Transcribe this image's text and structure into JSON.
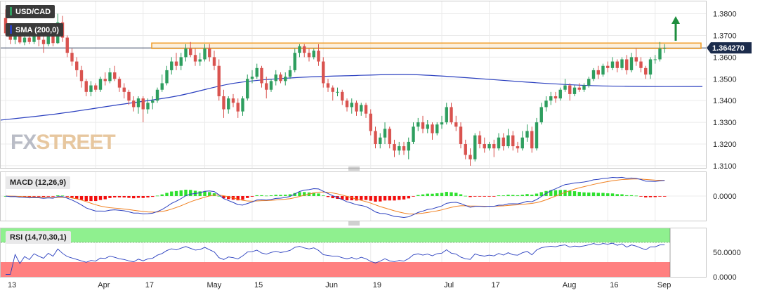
{
  "labels": {
    "symbol": "USD/CAD",
    "sma": "SMA (200,0)",
    "macd": "MACD (12,26,9)",
    "rsi": "RSI (14,70,30,1)",
    "watermark_a": "FX",
    "watermark_b": "STREET"
  },
  "colors": {
    "up": "#2e9e5f",
    "down": "#d9534f",
    "sma": "#2a3fbf",
    "resistance_zone": "#f0a030",
    "macd_line": "#2a3fbf",
    "signal_line": "#f08020",
    "hist_up": "#2ee02e",
    "hist_down": "#f20d0d",
    "rsi_line": "#2a3fbf",
    "rsi_over": "#8ff08f",
    "rsi_under": "#ff8080",
    "price_tag": "#1c2c4c",
    "arrow": "#1e8e3e"
  },
  "chart_data": [
    {
      "type": "candlestick",
      "title": "USD/CAD",
      "x_ticks": [
        "13",
        "Apr",
        "17",
        "May",
        "15",
        "Jun",
        "19",
        "Jul",
        "17",
        "Aug",
        "16",
        "Sep"
      ],
      "x_tick_index": [
        0,
        19,
        29,
        42,
        52,
        67,
        77,
        92,
        102,
        117,
        127,
        137
      ],
      "y_ticks": [
        "1.3800",
        "1.3700",
        "1.3600",
        "1.3500",
        "1.3400",
        "1.3300",
        "1.3200",
        "1.3100"
      ],
      "ylim": [
        1.309,
        1.386
      ],
      "last_price": "1.364270",
      "resistance_zone": [
        1.364,
        1.3665
      ],
      "sma_200": [
        1.331,
        1.334,
        1.338,
        1.342,
        1.348,
        1.3505,
        1.3515,
        1.352,
        1.3505,
        1.3485,
        1.347,
        1.3465,
        1.3465
      ],
      "ohlc": [
        [
          1.378,
          1.382,
          1.37,
          1.371
        ],
        [
          1.371,
          1.3745,
          1.366,
          1.368
        ],
        [
          1.368,
          1.372,
          1.366,
          1.3705
        ],
        [
          1.3705,
          1.372,
          1.366,
          1.3668
        ],
        [
          1.3668,
          1.37,
          1.3655,
          1.369
        ],
        [
          1.369,
          1.371,
          1.366,
          1.367
        ],
        [
          1.367,
          1.372,
          1.366,
          1.37
        ],
        [
          1.37,
          1.373,
          1.365,
          1.368
        ],
        [
          1.368,
          1.37,
          1.362,
          1.366
        ],
        [
          1.366,
          1.372,
          1.365,
          1.37
        ],
        [
          1.37,
          1.3715,
          1.365,
          1.3665
        ],
        [
          1.3665,
          1.38,
          1.366,
          1.376
        ],
        [
          1.376,
          1.379,
          1.367,
          1.369
        ],
        [
          1.369,
          1.37,
          1.36,
          1.362
        ],
        [
          1.362,
          1.364,
          1.356,
          1.358
        ],
        [
          1.358,
          1.36,
          1.351,
          1.354
        ],
        [
          1.354,
          1.356,
          1.346,
          1.349
        ],
        [
          1.349,
          1.35,
          1.342,
          1.344
        ],
        [
          1.344,
          1.349,
          1.342,
          1.347
        ],
        [
          1.347,
          1.348,
          1.344,
          1.345
        ],
        [
          1.345,
          1.351,
          1.344,
          1.35
        ],
        [
          1.35,
          1.353,
          1.347,
          1.349
        ],
        [
          1.349,
          1.355,
          1.348,
          1.353
        ],
        [
          1.353,
          1.356,
          1.349,
          1.35
        ],
        [
          1.35,
          1.351,
          1.344,
          1.346
        ],
        [
          1.346,
          1.348,
          1.341,
          1.344
        ],
        [
          1.344,
          1.345,
          1.338,
          1.34
        ],
        [
          1.34,
          1.342,
          1.335,
          1.337
        ],
        [
          1.337,
          1.342,
          1.334,
          1.341
        ],
        [
          1.341,
          1.342,
          1.33,
          1.336
        ],
        [
          1.336,
          1.341,
          1.334,
          1.339
        ],
        [
          1.339,
          1.342,
          1.336,
          1.34
        ],
        [
          1.34,
          1.346,
          1.339,
          1.345
        ],
        [
          1.345,
          1.352,
          1.344,
          1.348
        ],
        [
          1.348,
          1.356,
          1.347,
          1.354
        ],
        [
          1.354,
          1.36,
          1.352,
          1.358
        ],
        [
          1.358,
          1.362,
          1.354,
          1.356
        ],
        [
          1.356,
          1.362,
          1.354,
          1.36
        ],
        [
          1.36,
          1.366,
          1.358,
          1.364
        ],
        [
          1.364,
          1.367,
          1.36,
          1.361
        ],
        [
          1.361,
          1.364,
          1.356,
          1.358
        ],
        [
          1.358,
          1.362,
          1.356,
          1.359
        ],
        [
          1.359,
          1.366,
          1.358,
          1.364
        ],
        [
          1.364,
          1.366,
          1.358,
          1.36
        ],
        [
          1.36,
          1.363,
          1.354,
          1.356
        ],
        [
          1.356,
          1.359,
          1.34,
          1.342
        ],
        [
          1.342,
          1.345,
          1.332,
          1.336
        ],
        [
          1.336,
          1.342,
          1.334,
          1.341
        ],
        [
          1.341,
          1.343,
          1.337,
          1.339
        ],
        [
          1.339,
          1.341,
          1.332,
          1.335
        ],
        [
          1.335,
          1.342,
          1.333,
          1.341
        ],
        [
          1.341,
          1.352,
          1.34,
          1.35
        ],
        [
          1.35,
          1.354,
          1.348,
          1.351
        ],
        [
          1.351,
          1.357,
          1.35,
          1.355
        ],
        [
          1.355,
          1.356,
          1.346,
          1.348
        ],
        [
          1.348,
          1.351,
          1.341,
          1.345
        ],
        [
          1.345,
          1.35,
          1.344,
          1.349
        ],
        [
          1.349,
          1.354,
          1.347,
          1.352
        ],
        [
          1.352,
          1.353,
          1.348,
          1.349
        ],
        [
          1.349,
          1.353,
          1.347,
          1.351
        ],
        [
          1.351,
          1.356,
          1.35,
          1.354
        ],
        [
          1.354,
          1.364,
          1.353,
          1.362
        ],
        [
          1.362,
          1.366,
          1.36,
          1.365
        ],
        [
          1.365,
          1.366,
          1.36,
          1.362
        ],
        [
          1.362,
          1.364,
          1.358,
          1.36
        ],
        [
          1.36,
          1.364,
          1.359,
          1.363
        ],
        [
          1.363,
          1.366,
          1.356,
          1.358
        ],
        [
          1.358,
          1.36,
          1.346,
          1.348
        ],
        [
          1.348,
          1.35,
          1.344,
          1.346
        ],
        [
          1.346,
          1.347,
          1.34,
          1.344
        ],
        [
          1.344,
          1.346,
          1.342,
          1.344
        ],
        [
          1.344,
          1.345,
          1.338,
          1.34
        ],
        [
          1.34,
          1.341,
          1.335,
          1.337
        ],
        [
          1.337,
          1.341,
          1.334,
          1.339
        ],
        [
          1.339,
          1.34,
          1.333,
          1.335
        ],
        [
          1.335,
          1.339,
          1.333,
          1.338
        ],
        [
          1.338,
          1.339,
          1.332,
          1.334
        ],
        [
          1.334,
          1.336,
          1.324,
          1.326
        ],
        [
          1.326,
          1.328,
          1.318,
          1.32
        ],
        [
          1.32,
          1.325,
          1.318,
          1.323
        ],
        [
          1.323,
          1.33,
          1.32,
          1.327
        ],
        [
          1.327,
          1.328,
          1.318,
          1.32
        ],
        [
          1.32,
          1.322,
          1.314,
          1.317
        ],
        [
          1.317,
          1.321,
          1.315,
          1.319
        ],
        [
          1.319,
          1.321,
          1.315,
          1.317
        ],
        [
          1.317,
          1.323,
          1.313,
          1.321
        ],
        [
          1.321,
          1.33,
          1.32,
          1.328
        ],
        [
          1.328,
          1.332,
          1.326,
          1.33
        ],
        [
          1.33,
          1.333,
          1.325,
          1.327
        ],
        [
          1.327,
          1.331,
          1.325,
          1.329
        ],
        [
          1.329,
          1.33,
          1.322,
          1.325
        ],
        [
          1.325,
          1.33,
          1.324,
          1.329
        ],
        [
          1.329,
          1.333,
          1.327,
          1.33
        ],
        [
          1.33,
          1.339,
          1.329,
          1.337
        ],
        [
          1.337,
          1.339,
          1.329,
          1.33
        ],
        [
          1.33,
          1.333,
          1.326,
          1.328
        ],
        [
          1.328,
          1.33,
          1.318,
          1.32
        ],
        [
          1.32,
          1.322,
          1.313,
          1.315
        ],
        [
          1.315,
          1.318,
          1.31,
          1.313
        ],
        [
          1.313,
          1.325,
          1.312,
          1.324
        ],
        [
          1.324,
          1.326,
          1.318,
          1.32
        ],
        [
          1.32,
          1.323,
          1.316,
          1.318
        ],
        [
          1.318,
          1.321,
          1.317,
          1.32
        ],
        [
          1.32,
          1.322,
          1.314,
          1.318
        ],
        [
          1.318,
          1.325,
          1.317,
          1.323
        ],
        [
          1.323,
          1.325,
          1.317,
          1.319
        ],
        [
          1.319,
          1.327,
          1.318,
          1.324
        ],
        [
          1.324,
          1.326,
          1.317,
          1.319
        ],
        [
          1.319,
          1.321,
          1.316,
          1.318
        ],
        [
          1.318,
          1.326,
          1.317,
          1.323
        ],
        [
          1.323,
          1.329,
          1.321,
          1.326
        ],
        [
          1.326,
          1.328,
          1.316,
          1.318
        ],
        [
          1.318,
          1.332,
          1.317,
          1.33
        ],
        [
          1.33,
          1.339,
          1.329,
          1.337
        ],
        [
          1.337,
          1.342,
          1.335,
          1.34
        ],
        [
          1.34,
          1.344,
          1.338,
          1.342
        ],
        [
          1.342,
          1.344,
          1.339,
          1.341
        ],
        [
          1.341,
          1.346,
          1.34,
          1.345
        ],
        [
          1.345,
          1.35,
          1.344,
          1.347
        ],
        [
          1.347,
          1.348,
          1.34,
          1.343
        ],
        [
          1.343,
          1.347,
          1.342,
          1.346
        ],
        [
          1.346,
          1.348,
          1.344,
          1.345
        ],
        [
          1.345,
          1.348,
          1.344,
          1.347
        ],
        [
          1.347,
          1.351,
          1.346,
          1.35
        ],
        [
          1.35,
          1.355,
          1.349,
          1.354
        ],
        [
          1.354,
          1.356,
          1.35,
          1.352
        ],
        [
          1.352,
          1.357,
          1.351,
          1.356
        ],
        [
          1.356,
          1.358,
          1.353,
          1.355
        ],
        [
          1.355,
          1.36,
          1.354,
          1.358
        ],
        [
          1.358,
          1.359,
          1.353,
          1.355
        ],
        [
          1.355,
          1.36,
          1.354,
          1.359
        ],
        [
          1.359,
          1.361,
          1.352,
          1.354
        ],
        [
          1.354,
          1.362,
          1.353,
          1.36
        ],
        [
          1.36,
          1.364,
          1.356,
          1.358
        ],
        [
          1.358,
          1.36,
          1.353,
          1.355
        ],
        [
          1.355,
          1.356,
          1.35,
          1.352
        ],
        [
          1.352,
          1.36,
          1.35,
          1.359
        ],
        [
          1.359,
          1.361,
          1.357,
          1.359
        ],
        [
          1.359,
          1.367,
          1.358,
          1.364
        ],
        [
          1.364,
          1.366,
          1.362,
          1.3643
        ]
      ]
    },
    {
      "type": "bar",
      "title": "MACD (12,26,9)",
      "y_ticks": [
        "0.0000"
      ],
      "series": [
        {
          "name": "MACD (12,26,9)"
        }
      ]
    },
    {
      "type": "line",
      "title": "RSI (14,70,30,1)",
      "y_ticks": [
        "50.0000",
        "0.0000"
      ],
      "ylim": [
        0,
        100
      ],
      "bands": [
        70,
        30
      ],
      "series": [
        {
          "name": "RSI (14,70,30,1)"
        }
      ]
    }
  ]
}
